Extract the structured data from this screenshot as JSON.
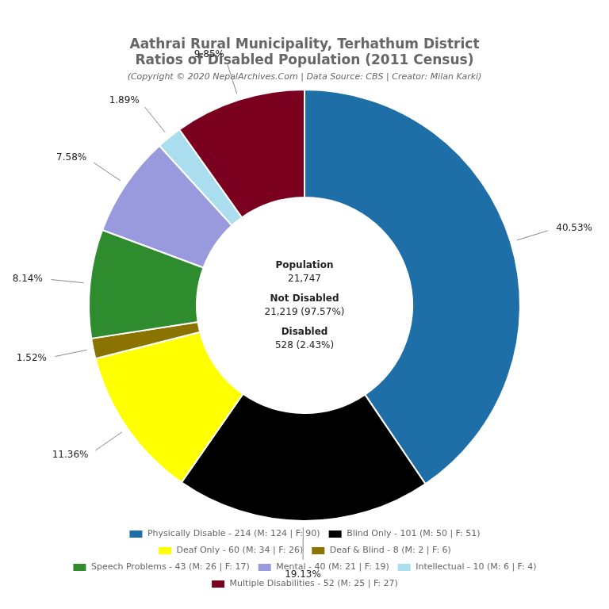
{
  "chart_data": {
    "type": "doughnut",
    "title": [
      "Aathrai Rural Municipality, Terhathum District",
      "Ratios of Disabled Population (2011 Census)"
    ],
    "subtitle": "(Copyright © 2020 NepalArchives.Com | Data Source: CBS | Creator: Milan Karki)",
    "categories": [
      "Physically Disable - 214 (M: 124 | F: 90)",
      "Blind Only - 101 (M: 50 | F: 51)",
      "Deaf Only - 60 (M: 34 | F: 26)",
      "Deaf & Blind - 8 (M: 2 | F: 6)",
      "Speech Problems - 43 (M: 26 | F: 17)",
      "Mental - 40 (M: 21 | F: 19)",
      "Intellectual - 10 (M: 6 | F: 4)",
      "Multiple Disabilities - 52 (M: 25 | F: 27)"
    ],
    "values": [
      40.53,
      19.13,
      11.36,
      1.52,
      8.14,
      7.58,
      1.89,
      9.85
    ],
    "value_labels": [
      "40.53%",
      "19.13%",
      "11.36%",
      "1.52%",
      "8.14%",
      "7.58%",
      "1.89%",
      "9.85%"
    ],
    "colors": [
      "#1e6fa8",
      "#000000",
      "#ffff00",
      "#8b7300",
      "#2e8b2e",
      "#9999dd",
      "#aaddee",
      "#7b0020"
    ],
    "data_labels": true,
    "legend": "bottom",
    "annotations": [
      "Population",
      "21,747",
      "Not Disabled",
      "21,219 (97.57%)",
      "Disabled",
      "528 (2.43%)"
    ]
  }
}
